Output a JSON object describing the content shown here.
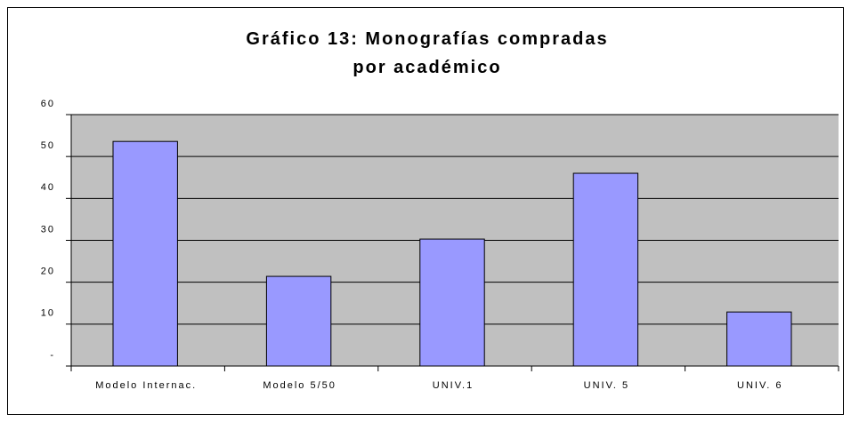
{
  "chart_data": {
    "type": "bar",
    "title": "Gráfico 13:  Monografías compradas por académico",
    "categories": [
      "Modelo Internac.",
      "Modelo 5/50",
      "UNIV.1",
      "UNIV. 5",
      "UNIV. 6"
    ],
    "values": [
      53.6,
      21.4,
      30.3,
      46,
      12.9
    ],
    "color": "#9999ff",
    "ylim": [
      0,
      60
    ],
    "yticks": [
      {
        "value": 0,
        "label": "-"
      },
      10,
      20,
      30,
      40,
      50,
      60
    ],
    "grid": true
  }
}
